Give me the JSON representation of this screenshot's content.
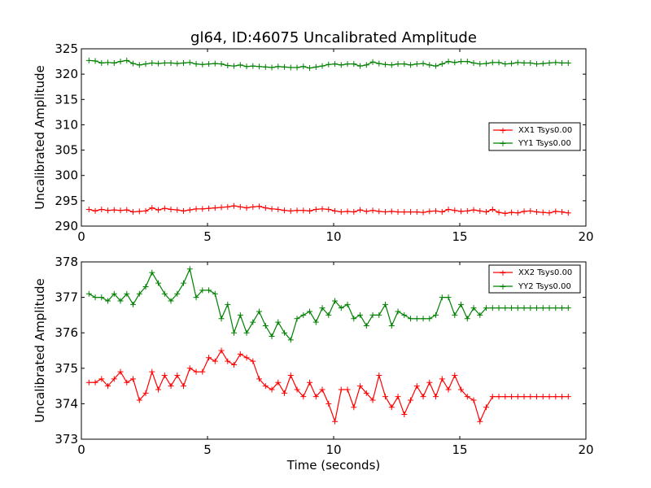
{
  "chart_data": [
    {
      "type": "line",
      "title": "gl64, ID:46075 Uncalibrated Amplitude",
      "ylabel": "Uncalibrated Amplitude",
      "xlabel": "",
      "xlim": [
        0,
        20
      ],
      "ylim": [
        290,
        325
      ],
      "xticks": [
        "0",
        "5",
        "10",
        "15",
        "20"
      ],
      "yticks": [
        "290",
        "295",
        "300",
        "305",
        "310",
        "315",
        "320",
        "325"
      ],
      "grid": false,
      "legend_position": "center-right",
      "series": [
        {
          "name": "XX1 Tsys0.00",
          "color": "#ff0000",
          "x": [
            0.3,
            0.55,
            0.8,
            1.05,
            1.3,
            1.55,
            1.8,
            2.05,
            2.3,
            2.55,
            2.8,
            3.05,
            3.3,
            3.55,
            3.8,
            4.05,
            4.3,
            4.55,
            4.8,
            5.05,
            5.3,
            5.55,
            5.8,
            6.05,
            6.3,
            6.55,
            6.8,
            7.05,
            7.3,
            7.55,
            7.8,
            8.05,
            8.3,
            8.55,
            8.8,
            9.05,
            9.3,
            9.55,
            9.8,
            10.05,
            10.3,
            10.55,
            10.8,
            11.05,
            11.3,
            11.55,
            11.8,
            12.05,
            12.3,
            12.55,
            12.8,
            13.05,
            13.3,
            13.55,
            13.8,
            14.05,
            14.3,
            14.55,
            14.8,
            15.05,
            15.3,
            15.55,
            15.8,
            16.05,
            16.3,
            16.55,
            16.8,
            17.05,
            17.3,
            17.55,
            17.8,
            18.05,
            18.3,
            18.55,
            18.8,
            19.05,
            19.3
          ],
          "y": [
            293.3,
            293.0,
            293.3,
            293.1,
            293.2,
            293.1,
            293.2,
            292.8,
            292.9,
            293.0,
            293.6,
            293.2,
            293.5,
            293.3,
            293.2,
            293.0,
            293.2,
            293.4,
            293.4,
            293.5,
            293.6,
            293.7,
            293.8,
            294.0,
            293.8,
            293.6,
            293.8,
            293.9,
            293.6,
            293.4,
            293.3,
            293.1,
            293.0,
            293.1,
            293.1,
            293.0,
            293.3,
            293.4,
            293.3,
            293.0,
            292.8,
            292.9,
            292.8,
            293.2,
            292.9,
            293.1,
            292.9,
            292.8,
            292.9,
            292.8,
            292.8,
            292.8,
            292.8,
            292.7,
            292.9,
            293.0,
            292.8,
            293.3,
            293.1,
            292.9,
            293.0,
            293.2,
            293.0,
            292.8,
            293.3,
            292.7,
            292.5,
            292.7,
            292.6,
            292.9,
            293.0,
            292.8,
            292.7,
            292.6,
            292.9,
            292.8,
            292.6
          ]
        },
        {
          "name": "YY1 Tsys0.00",
          "color": "#008000",
          "x": [
            0.3,
            0.55,
            0.8,
            1.05,
            1.3,
            1.55,
            1.8,
            2.05,
            2.3,
            2.55,
            2.8,
            3.05,
            3.3,
            3.55,
            3.8,
            4.05,
            4.3,
            4.55,
            4.8,
            5.05,
            5.3,
            5.55,
            5.8,
            6.05,
            6.3,
            6.55,
            6.8,
            7.05,
            7.3,
            7.55,
            7.8,
            8.05,
            8.3,
            8.55,
            8.8,
            9.05,
            9.3,
            9.55,
            9.8,
            10.05,
            10.3,
            10.55,
            10.8,
            11.05,
            11.3,
            11.55,
            11.8,
            12.05,
            12.3,
            12.55,
            12.8,
            13.05,
            13.3,
            13.55,
            13.8,
            14.05,
            14.3,
            14.55,
            14.8,
            15.05,
            15.3,
            15.55,
            15.8,
            16.05,
            16.3,
            16.55,
            16.8,
            17.05,
            17.3,
            17.55,
            17.8,
            18.05,
            18.3,
            18.55,
            18.8,
            19.05,
            19.3
          ],
          "y": [
            322.7,
            322.6,
            322.2,
            322.3,
            322.2,
            322.5,
            322.7,
            322.1,
            321.8,
            322.0,
            322.2,
            322.1,
            322.2,
            322.2,
            322.1,
            322.2,
            322.3,
            322.0,
            321.9,
            322.0,
            322.1,
            322.0,
            321.7,
            321.6,
            321.8,
            321.5,
            321.6,
            321.5,
            321.4,
            321.3,
            321.5,
            321.4,
            321.3,
            321.3,
            321.5,
            321.2,
            321.4,
            321.6,
            321.9,
            322.0,
            321.8,
            322.0,
            322.0,
            321.6,
            321.8,
            322.4,
            322.1,
            321.9,
            321.8,
            322.0,
            322.0,
            321.8,
            322.0,
            322.1,
            321.8,
            321.6,
            322.0,
            322.5,
            322.3,
            322.5,
            322.5,
            322.2,
            322.0,
            322.1,
            322.3,
            322.3,
            322.0,
            322.1,
            322.3,
            322.2,
            322.2,
            322.0,
            322.1,
            322.2,
            322.3,
            322.2,
            322.2
          ]
        }
      ]
    },
    {
      "type": "line",
      "title": "",
      "ylabel": "Uncalibrated Amplitude",
      "xlabel": "Time (seconds)",
      "xlim": [
        0,
        20
      ],
      "ylim": [
        373,
        378
      ],
      "xticks": [
        "0",
        "5",
        "10",
        "15",
        "20"
      ],
      "yticks": [
        "373",
        "374",
        "375",
        "376",
        "377",
        "378"
      ],
      "grid": false,
      "legend_position": "top-right",
      "series": [
        {
          "name": "XX2 Tsys0.00",
          "color": "#ff0000",
          "x": [
            0.3,
            0.55,
            0.8,
            1.05,
            1.3,
            1.55,
            1.8,
            2.05,
            2.3,
            2.55,
            2.8,
            3.05,
            3.3,
            3.55,
            3.8,
            4.05,
            4.3,
            4.55,
            4.8,
            5.05,
            5.3,
            5.55,
            5.8,
            6.05,
            6.3,
            6.55,
            6.8,
            7.05,
            7.3,
            7.55,
            7.8,
            8.05,
            8.3,
            8.55,
            8.8,
            9.05,
            9.3,
            9.55,
            9.8,
            10.05,
            10.3,
            10.55,
            10.8,
            11.05,
            11.3,
            11.55,
            11.8,
            12.05,
            12.3,
            12.55,
            12.8,
            13.05,
            13.3,
            13.55,
            13.8,
            14.05,
            14.3,
            14.55,
            14.8,
            15.05,
            15.3,
            15.55,
            15.8,
            16.05,
            16.3,
            16.55,
            16.8,
            17.05,
            17.3,
            17.55,
            17.8,
            18.05,
            18.3,
            18.55,
            18.8,
            19.05,
            19.3
          ],
          "y": [
            374.6,
            374.6,
            374.7,
            374.5,
            374.7,
            374.9,
            374.6,
            374.7,
            374.1,
            374.3,
            374.9,
            374.4,
            374.8,
            374.5,
            374.8,
            374.5,
            375.0,
            374.9,
            374.9,
            375.3,
            375.2,
            375.5,
            375.2,
            375.1,
            375.4,
            375.3,
            375.2,
            374.7,
            374.5,
            374.4,
            374.6,
            374.3,
            374.8,
            374.4,
            374.2,
            374.6,
            374.2,
            374.4,
            374.0,
            373.5,
            374.4,
            374.4,
            373.9,
            374.5,
            374.3,
            374.1,
            374.8,
            374.2,
            373.9,
            374.2,
            373.7,
            374.1,
            374.5,
            374.2,
            374.6,
            374.2,
            374.7,
            374.4,
            374.8,
            374.4,
            374.2,
            374.1,
            373.5,
            373.9,
            374.2,
            374.2,
            374.2,
            374.2,
            374.2,
            374.2,
            374.2,
            374.2,
            374.2,
            374.2,
            374.2,
            374.2,
            374.2
          ]
        },
        {
          "name": "YY2 Tsys0.00",
          "color": "#008000",
          "x": [
            0.3,
            0.55,
            0.8,
            1.05,
            1.3,
            1.55,
            1.8,
            2.05,
            2.3,
            2.55,
            2.8,
            3.05,
            3.3,
            3.55,
            3.8,
            4.05,
            4.3,
            4.55,
            4.8,
            5.05,
            5.3,
            5.55,
            5.8,
            6.05,
            6.3,
            6.55,
            6.8,
            7.05,
            7.3,
            7.55,
            7.8,
            8.05,
            8.3,
            8.55,
            8.8,
            9.05,
            9.3,
            9.55,
            9.8,
            10.05,
            10.3,
            10.55,
            10.8,
            11.05,
            11.3,
            11.55,
            11.8,
            12.05,
            12.3,
            12.55,
            12.8,
            13.05,
            13.3,
            13.55,
            13.8,
            14.05,
            14.3,
            14.55,
            14.8,
            15.05,
            15.3,
            15.55,
            15.8,
            16.05,
            16.3,
            16.55,
            16.8,
            17.05,
            17.3,
            17.55,
            17.8,
            18.05,
            18.3,
            18.55,
            18.8,
            19.05,
            19.3
          ],
          "y": [
            377.1,
            377.0,
            377.0,
            376.9,
            377.1,
            376.9,
            377.1,
            376.8,
            377.1,
            377.3,
            377.7,
            377.4,
            377.1,
            376.9,
            377.1,
            377.4,
            377.8,
            377.0,
            377.2,
            377.2,
            377.1,
            376.4,
            376.8,
            376.0,
            376.5,
            376.0,
            376.3,
            376.6,
            376.2,
            375.9,
            376.3,
            376.0,
            375.8,
            376.4,
            376.5,
            376.6,
            376.3,
            376.7,
            376.5,
            376.9,
            376.7,
            376.8,
            376.4,
            376.5,
            376.2,
            376.5,
            376.5,
            376.8,
            376.2,
            376.6,
            376.5,
            376.4,
            376.4,
            376.4,
            376.4,
            376.5,
            377.0,
            377.0,
            376.5,
            376.8,
            376.4,
            376.7,
            376.5,
            376.7,
            376.7,
            376.7,
            376.7,
            376.7,
            376.7,
            376.7,
            376.7,
            376.7,
            376.7,
            376.7,
            376.7,
            376.7,
            376.7
          ]
        }
      ]
    }
  ]
}
